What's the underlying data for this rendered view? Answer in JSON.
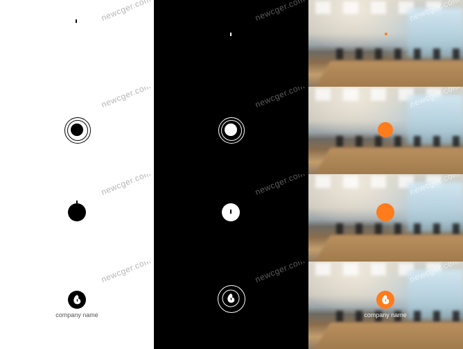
{
  "watermark": "newcger.com",
  "logo": {
    "company_name": "company name",
    "accent_color": "#ff7b1c"
  },
  "rows": [
    "logo-dot-appear",
    "logo-rings",
    "logo-ball",
    "logo-final"
  ],
  "columns": [
    "white-background",
    "black-background",
    "office-photo-background"
  ]
}
